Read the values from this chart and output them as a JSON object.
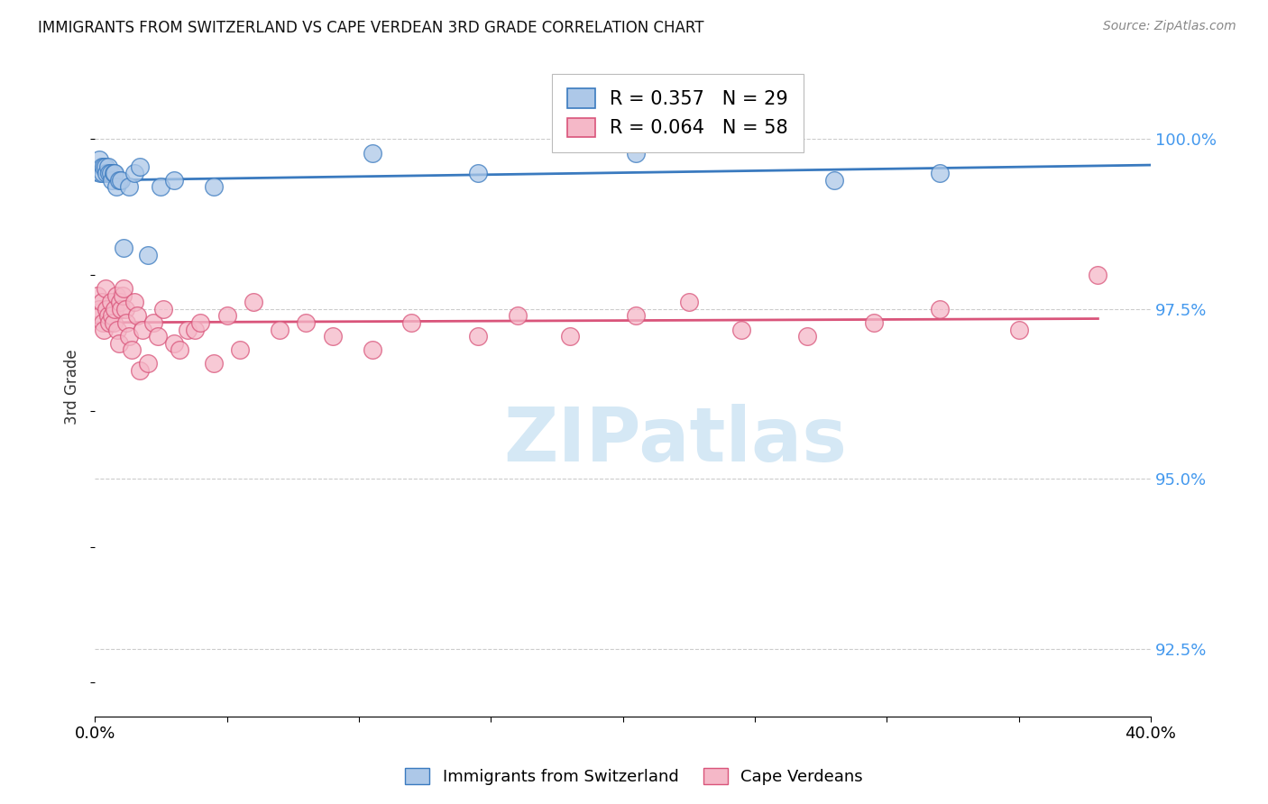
{
  "title": "IMMIGRANTS FROM SWITZERLAND VS CAPE VERDEAN 3RD GRADE CORRELATION CHART",
  "source": "Source: ZipAtlas.com",
  "ylabel": "3rd Grade",
  "y_ticks": [
    92.5,
    95.0,
    97.5,
    100.0
  ],
  "y_tick_labels": [
    "92.5%",
    "95.0%",
    "97.5%",
    "100.0%"
  ],
  "x_range": [
    0.0,
    40.0
  ],
  "y_range": [
    91.5,
    101.2
  ],
  "legend_r1": "R = 0.357",
  "legend_n1": "N = 29",
  "legend_r2": "R = 0.064",
  "legend_n2": "N = 58",
  "color_swiss": "#adc8e8",
  "color_cape": "#f5b8c8",
  "trendline_swiss_color": "#3a7abf",
  "trendline_cape_color": "#d9547a",
  "watermark_color": "#d5e8f5",
  "swiss_x": [
    0.15,
    0.2,
    0.25,
    0.3,
    0.35,
    0.4,
    0.45,
    0.5,
    0.55,
    0.6,
    0.65,
    0.7,
    0.75,
    0.8,
    0.9,
    1.0,
    1.1,
    1.3,
    1.5,
    1.7,
    2.0,
    2.5,
    3.0,
    4.5,
    10.5,
    14.5,
    20.5,
    28.0,
    32.0
  ],
  "swiss_y": [
    99.7,
    99.5,
    99.6,
    99.5,
    99.6,
    99.6,
    99.5,
    99.6,
    99.5,
    99.5,
    99.4,
    99.5,
    99.5,
    99.3,
    99.4,
    99.4,
    98.4,
    99.3,
    99.5,
    99.6,
    98.3,
    99.3,
    99.4,
    99.3,
    99.8,
    99.5,
    99.8,
    99.4,
    99.5
  ],
  "cape_x": [
    0.1,
    0.15,
    0.2,
    0.25,
    0.3,
    0.35,
    0.4,
    0.45,
    0.5,
    0.55,
    0.6,
    0.65,
    0.7,
    0.75,
    0.8,
    0.85,
    0.9,
    0.95,
    1.0,
    1.05,
    1.1,
    1.15,
    1.2,
    1.3,
    1.4,
    1.5,
    1.6,
    1.7,
    1.8,
    2.0,
    2.2,
    2.4,
    2.6,
    3.0,
    3.2,
    3.5,
    3.8,
    4.0,
    4.5,
    5.0,
    5.5,
    6.0,
    7.0,
    8.0,
    9.0,
    10.5,
    12.0,
    14.5,
    16.0,
    18.0,
    20.5,
    22.5,
    24.5,
    27.0,
    29.5,
    32.0,
    35.0,
    38.0
  ],
  "cape_y": [
    97.7,
    97.5,
    97.4,
    97.6,
    97.3,
    97.2,
    97.8,
    97.5,
    97.4,
    97.3,
    97.6,
    97.4,
    97.3,
    97.5,
    97.7,
    97.2,
    97.0,
    97.6,
    97.5,
    97.7,
    97.8,
    97.5,
    97.3,
    97.1,
    96.9,
    97.6,
    97.4,
    96.6,
    97.2,
    96.7,
    97.3,
    97.1,
    97.5,
    97.0,
    96.9,
    97.2,
    97.2,
    97.3,
    96.7,
    97.4,
    96.9,
    97.6,
    97.2,
    97.3,
    97.1,
    96.9,
    97.3,
    97.1,
    97.4,
    97.1,
    97.4,
    97.6,
    97.2,
    97.1,
    97.3,
    97.5,
    97.2,
    98.0
  ]
}
